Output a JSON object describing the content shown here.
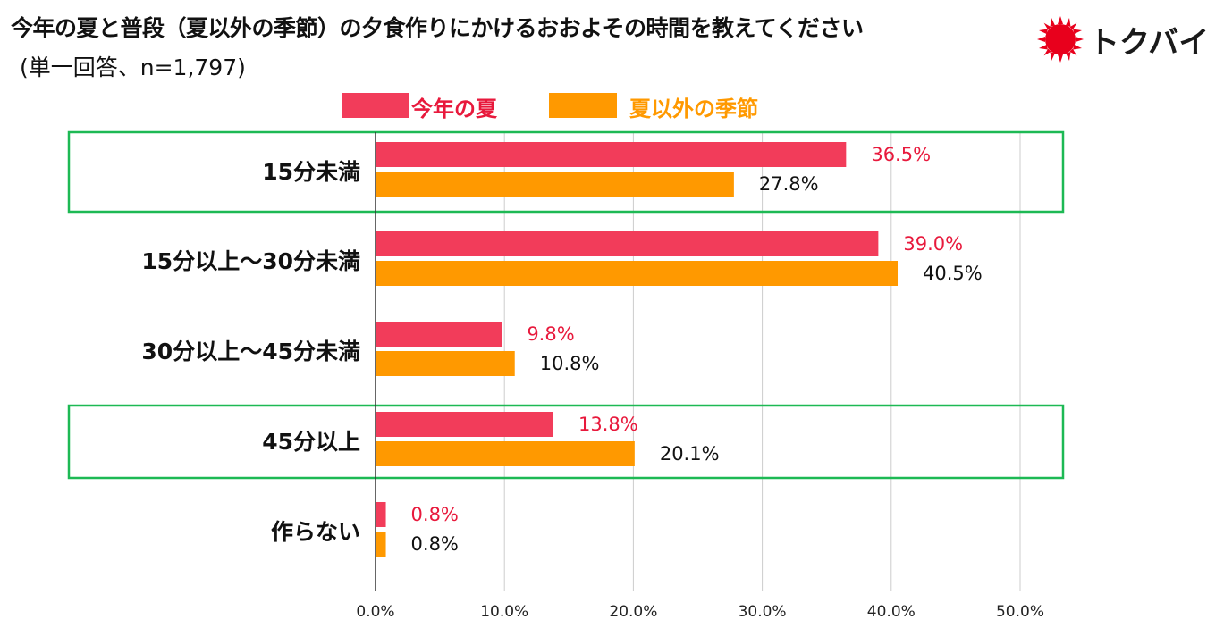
{
  "header": {
    "title": "今年の夏と普段（夏以外の季節）の夕食作りにかけるおおよその時間を教えてください",
    "subtitle": "(単一回答、n=1,797)"
  },
  "logo": {
    "text": "トクバイ",
    "color": "#e8001c"
  },
  "colors": {
    "summer": "#f23c5a",
    "other": "#ff9900",
    "summer_label": "#e8193c",
    "highlight": "#1db954",
    "grid": "#cccccc",
    "axis": "#333333"
  },
  "chart_data": {
    "type": "bar",
    "orientation": "horizontal",
    "title": "今年の夏と普段（夏以外の季節）の夕食作りにかけるおおよその時間を教えてください",
    "categories": [
      "15分未満",
      "15分以上～30分未満",
      "30分以上～45分未満",
      "45分以上",
      "作らない"
    ],
    "series": [
      {
        "name": "今年の夏",
        "values": [
          36.5,
          39.0,
          9.8,
          13.8,
          0.8
        ]
      },
      {
        "name": "夏以外の季節",
        "values": [
          27.8,
          40.5,
          10.8,
          20.1,
          0.8
        ]
      }
    ],
    "value_labels": [
      [
        "36.5%",
        "39.0%",
        "9.8%",
        "13.8%",
        "0.8%"
      ],
      [
        "27.8%",
        "40.5%",
        "10.8%",
        "20.1%",
        "0.8%"
      ]
    ],
    "xlim": [
      0,
      50
    ],
    "xticks": [
      "0.0%",
      "10.0%",
      "20.0%",
      "30.0%",
      "40.0%",
      "50.0%"
    ],
    "highlighted_categories": [
      "15分未満",
      "45分以上"
    ],
    "legend_position": "top",
    "grid": true
  }
}
